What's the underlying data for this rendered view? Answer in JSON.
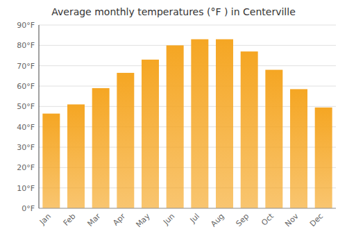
{
  "chart_data": {
    "type": "bar",
    "title": "Average monthly temperatures (°F ) in Centerville",
    "categories": [
      "Jan",
      "Feb",
      "Mar",
      "Apr",
      "May",
      "Jun",
      "Jul",
      "Aug",
      "Sep",
      "Oct",
      "Nov",
      "Dec"
    ],
    "values": [
      46.5,
      51,
      59,
      66.5,
      73,
      80,
      83,
      83,
      77,
      68,
      58.5,
      49.5
    ],
    "color": "#F5A623",
    "ylim": [
      0,
      90
    ],
    "yticks": [
      {
        "value": 0,
        "label": "0°F"
      },
      {
        "value": 10,
        "label": "10°F"
      },
      {
        "value": 20,
        "label": "20°F"
      },
      {
        "value": 30,
        "label": "30°F"
      },
      {
        "value": 40,
        "label": "40°F"
      },
      {
        "value": 50,
        "label": "50°F"
      },
      {
        "value": 60,
        "label": "60°F"
      },
      {
        "value": 70,
        "label": "70°F"
      },
      {
        "value": 80,
        "label": "80°F"
      },
      {
        "value": 90,
        "label": "90°F"
      }
    ],
    "grid": true
  }
}
